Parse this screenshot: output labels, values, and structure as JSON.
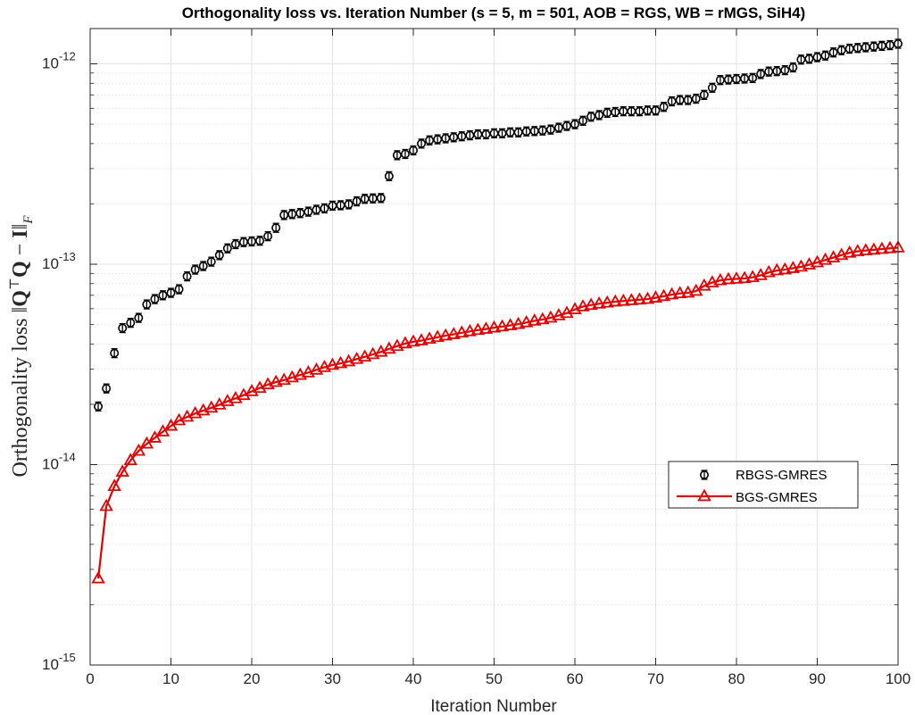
{
  "chart_data": {
    "type": "line",
    "title": "Orthogonality loss vs. Iteration Number (s = 5, m = 501, AOB = RGS, WB = rMGS, SiH4)",
    "xlabel": "Iteration Number",
    "ylabel": "Orthogonality loss ‖QᵀQ − I‖F",
    "xlim": [
      0,
      100
    ],
    "ylim": [
      1e-15,
      1.5e-12
    ],
    "yscale": "log",
    "grid": true,
    "minor_grid": true,
    "legend_position": "right-center",
    "x_ticks": [
      0,
      10,
      20,
      30,
      40,
      50,
      60,
      70,
      80,
      90,
      100
    ],
    "y_ticks": [
      {
        "value": 1e-15,
        "base": "10",
        "exp": "-15"
      },
      {
        "value": 1e-14,
        "base": "10",
        "exp": "-14"
      },
      {
        "value": 1e-13,
        "base": "10",
        "exp": "-13"
      },
      {
        "value": 1e-12,
        "base": "10",
        "exp": "-12"
      }
    ],
    "x": [
      1,
      2,
      3,
      4,
      5,
      6,
      7,
      8,
      9,
      10,
      11,
      12,
      13,
      14,
      15,
      16,
      17,
      18,
      19,
      20,
      21,
      22,
      23,
      24,
      25,
      26,
      27,
      28,
      29,
      30,
      31,
      32,
      33,
      34,
      35,
      36,
      37,
      38,
      39,
      40,
      41,
      42,
      43,
      44,
      45,
      46,
      47,
      48,
      49,
      50,
      51,
      52,
      53,
      54,
      55,
      56,
      57,
      58,
      59,
      60,
      61,
      62,
      63,
      64,
      65,
      66,
      67,
      68,
      69,
      70,
      71,
      72,
      73,
      74,
      75,
      76,
      77,
      78,
      79,
      80,
      81,
      82,
      83,
      84,
      85,
      86,
      87,
      88,
      89,
      90,
      91,
      92,
      93,
      94,
      95,
      96,
      97,
      98,
      99,
      100
    ],
    "series": [
      {
        "name": "RBGS-GMRES",
        "color": "#000000",
        "marker": "circle-errorbar",
        "line": false,
        "values": [
          1.95e-14,
          2.4e-14,
          3.6e-14,
          4.8e-14,
          5.1e-14,
          5.4e-14,
          6.3e-14,
          6.7e-14,
          7e-14,
          7.2e-14,
          7.5e-14,
          8.7e-14,
          9.4e-14,
          9.8e-14,
          1.03e-13,
          1.11e-13,
          1.2e-13,
          1.26e-13,
          1.29e-13,
          1.3e-13,
          1.31e-13,
          1.38e-13,
          1.52e-13,
          1.76e-13,
          1.78e-13,
          1.8e-13,
          1.83e-13,
          1.87e-13,
          1.9e-13,
          1.96e-13,
          1.97e-13,
          1.99e-13,
          2.06e-13,
          2.12e-13,
          2.13e-13,
          2.14e-13,
          2.75e-13,
          3.5e-13,
          3.55e-13,
          3.7e-13,
          4e-13,
          4.15e-13,
          4.2e-13,
          4.25e-13,
          4.3e-13,
          4.35e-13,
          4.4e-13,
          4.45e-13,
          4.45e-13,
          4.5e-13,
          4.5e-13,
          4.55e-13,
          4.55e-13,
          4.6e-13,
          4.62e-13,
          4.65e-13,
          4.7e-13,
          4.8e-13,
          4.9e-13,
          5e-13,
          5.2e-13,
          5.45e-13,
          5.55e-13,
          5.7e-13,
          5.75e-13,
          5.8e-13,
          5.8e-13,
          5.8e-13,
          5.85e-13,
          5.85e-13,
          6.1e-13,
          6.5e-13,
          6.6e-13,
          6.6e-13,
          6.7e-13,
          7e-13,
          7.6e-13,
          8.3e-13,
          8.35e-13,
          8.4e-13,
          8.45e-13,
          8.5e-13,
          8.9e-13,
          9.15e-13,
          9.2e-13,
          9.3e-13,
          9.6e-13,
          1.05e-12,
          1.06e-12,
          1.08e-12,
          1.1e-12,
          1.14e-12,
          1.17e-12,
          1.19e-12,
          1.2e-12,
          1.21e-12,
          1.22e-12,
          1.23e-12,
          1.24e-12,
          1.26e-12
        ]
      },
      {
        "name": "BGS-GMRES",
        "color": "#e30000",
        "marker": "triangle",
        "line": true,
        "values": [
          2.7e-15,
          6.2e-15,
          7.8e-15,
          9.2e-15,
          1.05e-14,
          1.17e-14,
          1.27e-14,
          1.36e-14,
          1.46e-14,
          1.56e-14,
          1.66e-14,
          1.73e-14,
          1.8e-14,
          1.86e-14,
          1.92e-14,
          1.99e-14,
          2.07e-14,
          2.14e-14,
          2.22e-14,
          2.32e-14,
          2.41e-14,
          2.51e-14,
          2.58e-14,
          2.64e-14,
          2.72e-14,
          2.8e-14,
          2.88e-14,
          2.97e-14,
          3.06e-14,
          3.14e-14,
          3.2e-14,
          3.27e-14,
          3.36e-14,
          3.45e-14,
          3.55e-14,
          3.65e-14,
          3.78e-14,
          3.9e-14,
          4.02e-14,
          4.1e-14,
          4.16e-14,
          4.24e-14,
          4.32e-14,
          4.4e-14,
          4.47e-14,
          4.55e-14,
          4.62e-14,
          4.69e-14,
          4.75e-14,
          4.82e-14,
          4.88e-14,
          4.95e-14,
          5.02e-14,
          5.12e-14,
          5.22e-14,
          5.3e-14,
          5.4e-14,
          5.55e-14,
          5.7e-14,
          5.95e-14,
          6.15e-14,
          6.25e-14,
          6.35e-14,
          6.42e-14,
          6.5e-14,
          6.55e-14,
          6.6e-14,
          6.65e-14,
          6.7e-14,
          6.8e-14,
          6.92e-14,
          7.05e-14,
          7.15e-14,
          7.2e-14,
          7.35e-14,
          7.8e-14,
          8.1e-14,
          8.3e-14,
          8.4e-14,
          8.45e-14,
          8.5e-14,
          8.6e-14,
          8.8e-14,
          9.1e-14,
          9.3e-14,
          9.4e-14,
          9.55e-14,
          9.7e-14,
          9.95e-14,
          1.02e-13,
          1.05e-13,
          1.08e-13,
          1.11e-13,
          1.14e-13,
          1.16e-13,
          1.17e-13,
          1.18e-13,
          1.19e-13,
          1.2e-13,
          1.21e-13
        ]
      }
    ]
  }
}
